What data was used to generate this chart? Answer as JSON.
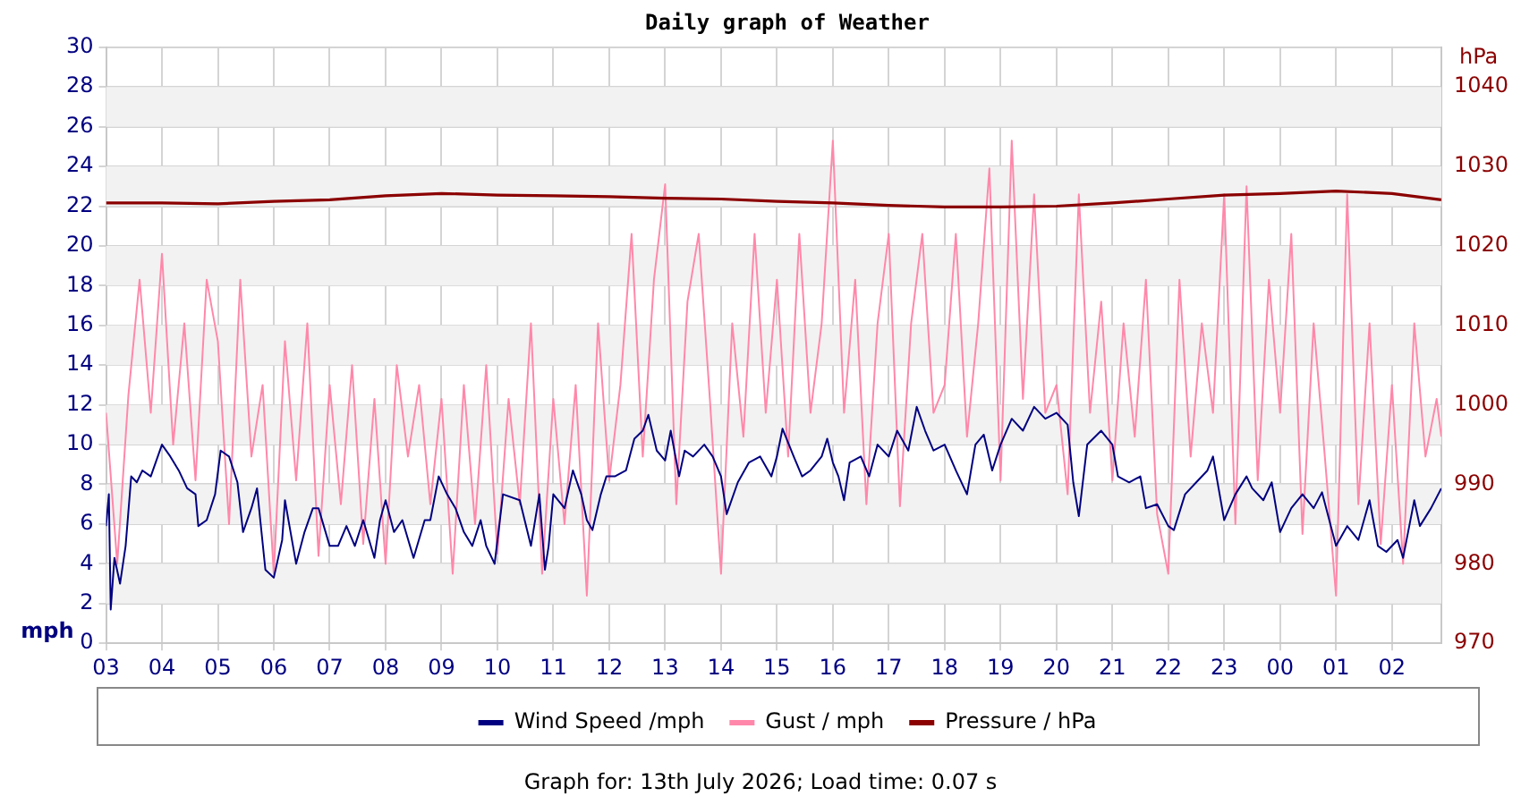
{
  "chart_data": {
    "type": "line",
    "title": "Daily graph of Weather",
    "ylabel": "mph",
    "y2label": "hPa",
    "annotations": [
      "Graph for: 13th July 2026; Load time: 0.07 s"
    ],
    "xlim": [
      "2026-07-12T03:00",
      "2026-07-13T02:53"
    ],
    "xticks": [
      {
        "value": "2026-07-12T03:00",
        "label": "03"
      },
      {
        "value": "2026-07-12T04:00",
        "label": "04"
      },
      {
        "value": "2026-07-12T05:00",
        "label": "05"
      },
      {
        "value": "2026-07-12T06:00",
        "label": "06"
      },
      {
        "value": "2026-07-12T07:00",
        "label": "07"
      },
      {
        "value": "2026-07-12T08:00",
        "label": "08"
      },
      {
        "value": "2026-07-12T09:00",
        "label": "09"
      },
      {
        "value": "2026-07-12T10:00",
        "label": "10"
      },
      {
        "value": "2026-07-12T11:00",
        "label": "11"
      },
      {
        "value": "2026-07-12T12:00",
        "label": "12"
      },
      {
        "value": "2026-07-12T13:00",
        "label": "13"
      },
      {
        "value": "2026-07-12T14:00",
        "label": "14"
      },
      {
        "value": "2026-07-12T15:00",
        "label": "15"
      },
      {
        "value": "2026-07-12T16:00",
        "label": "16"
      },
      {
        "value": "2026-07-12T17:00",
        "label": "17"
      },
      {
        "value": "2026-07-12T18:00",
        "label": "18"
      },
      {
        "value": "2026-07-12T19:00",
        "label": "19"
      },
      {
        "value": "2026-07-12T20:00",
        "label": "20"
      },
      {
        "value": "2026-07-12T21:00",
        "label": "21"
      },
      {
        "value": "2026-07-12T22:00",
        "label": "22"
      },
      {
        "value": "2026-07-12T23:00",
        "label": "23"
      },
      {
        "value": "2026-07-13T00:00",
        "label": "00"
      },
      {
        "value": "2026-07-13T01:00",
        "label": "01"
      },
      {
        "value": "2026-07-13T02:00",
        "label": "02"
      }
    ],
    "ylim": [
      0,
      30
    ],
    "yticks": [
      0,
      2,
      4,
      6,
      8,
      10,
      12,
      14,
      16,
      18,
      20,
      22,
      24,
      26,
      28,
      30
    ],
    "y2lim": [
      970,
      1045
    ],
    "y2ticks": [
      970,
      980,
      990,
      1000,
      1010,
      1020,
      1030,
      1040
    ],
    "grid": true,
    "legend": "bottom",
    "marker": "none",
    "line_style": "solid",
    "series": [
      {
        "name": "Wind Speed /mph",
        "color": "#000080",
        "x": [
          "2026-07-12T03:00",
          "2026-07-12T03:03",
          "2026-07-12T03:05",
          "2026-07-12T03:09",
          "2026-07-12T03:15",
          "2026-07-12T03:21",
          "2026-07-12T03:27",
          "2026-07-12T03:33",
          "2026-07-12T03:39",
          "2026-07-12T03:48",
          "2026-07-12T04:00",
          "2026-07-12T04:09",
          "2026-07-12T04:18",
          "2026-07-12T04:27",
          "2026-07-12T04:36",
          "2026-07-12T04:39",
          "2026-07-12T04:48",
          "2026-07-12T04:57",
          "2026-07-12T05:03",
          "2026-07-12T05:12",
          "2026-07-12T05:21",
          "2026-07-12T05:27",
          "2026-07-12T05:36",
          "2026-07-12T05:42",
          "2026-07-12T05:51",
          "2026-07-12T06:00",
          "2026-07-12T06:09",
          "2026-07-12T06:12",
          "2026-07-12T06:18",
          "2026-07-12T06:24",
          "2026-07-12T06:33",
          "2026-07-12T06:42",
          "2026-07-12T06:48",
          "2026-07-12T07:00",
          "2026-07-12T07:09",
          "2026-07-12T07:18",
          "2026-07-12T07:27",
          "2026-07-12T07:36",
          "2026-07-12T07:48",
          "2026-07-12T07:54",
          "2026-07-12T08:00",
          "2026-07-12T08:09",
          "2026-07-12T08:18",
          "2026-07-12T08:30",
          "2026-07-12T08:42",
          "2026-07-12T08:48",
          "2026-07-12T08:57",
          "2026-07-12T09:06",
          "2026-07-12T09:15",
          "2026-07-12T09:24",
          "2026-07-12T09:33",
          "2026-07-12T09:42",
          "2026-07-12T09:48",
          "2026-07-12T09:57",
          "2026-07-12T10:06",
          "2026-07-12T10:24",
          "2026-07-12T10:36",
          "2026-07-12T10:45",
          "2026-07-12T10:51",
          "2026-07-12T10:55",
          "2026-07-12T11:00",
          "2026-07-12T11:12",
          "2026-07-12T11:21",
          "2026-07-12T11:30",
          "2026-07-12T11:36",
          "2026-07-12T11:42",
          "2026-07-12T11:51",
          "2026-07-12T11:57",
          "2026-07-12T12:06",
          "2026-07-12T12:18",
          "2026-07-12T12:27",
          "2026-07-12T12:36",
          "2026-07-12T12:42",
          "2026-07-12T12:51",
          "2026-07-12T13:00",
          "2026-07-12T13:06",
          "2026-07-12T13:15",
          "2026-07-12T13:21",
          "2026-07-12T13:30",
          "2026-07-12T13:42",
          "2026-07-12T13:51",
          "2026-07-12T14:00",
          "2026-07-12T14:06",
          "2026-07-12T14:18",
          "2026-07-12T14:30",
          "2026-07-12T14:42",
          "2026-07-12T14:54",
          "2026-07-12T15:00",
          "2026-07-12T15:06",
          "2026-07-12T15:18",
          "2026-07-12T15:27",
          "2026-07-12T15:36",
          "2026-07-12T15:48",
          "2026-07-12T15:54",
          "2026-07-12T16:00",
          "2026-07-12T16:06",
          "2026-07-12T16:12",
          "2026-07-12T16:18",
          "2026-07-12T16:30",
          "2026-07-12T16:39",
          "2026-07-12T16:48",
          "2026-07-12T17:00",
          "2026-07-12T17:09",
          "2026-07-12T17:21",
          "2026-07-12T17:30",
          "2026-07-12T17:39",
          "2026-07-12T17:48",
          "2026-07-12T18:00",
          "2026-07-12T18:12",
          "2026-07-12T18:24",
          "2026-07-12T18:33",
          "2026-07-12T18:42",
          "2026-07-12T18:51",
          "2026-07-12T19:00",
          "2026-07-12T19:12",
          "2026-07-12T19:24",
          "2026-07-12T19:36",
          "2026-07-12T19:48",
          "2026-07-12T20:00",
          "2026-07-12T20:12",
          "2026-07-12T20:18",
          "2026-07-12T20:24",
          "2026-07-12T20:33",
          "2026-07-12T20:48",
          "2026-07-12T21:00",
          "2026-07-12T21:06",
          "2026-07-12T21:18",
          "2026-07-12T21:30",
          "2026-07-12T21:36",
          "2026-07-12T21:48",
          "2026-07-12T22:00",
          "2026-07-12T22:06",
          "2026-07-12T22:18",
          "2026-07-12T22:30",
          "2026-07-12T22:42",
          "2026-07-12T22:48",
          "2026-07-12T23:00",
          "2026-07-12T23:12",
          "2026-07-12T23:24",
          "2026-07-12T23:30",
          "2026-07-12T23:42",
          "2026-07-12T23:51",
          "2026-07-13T00:00",
          "2026-07-13T00:12",
          "2026-07-13T00:24",
          "2026-07-13T00:36",
          "2026-07-13T00:45",
          "2026-07-13T01:00",
          "2026-07-13T01:12",
          "2026-07-13T01:24",
          "2026-07-13T01:36",
          "2026-07-13T01:45",
          "2026-07-13T01:54",
          "2026-07-13T02:06",
          "2026-07-13T02:12",
          "2026-07-13T02:24",
          "2026-07-13T02:30",
          "2026-07-13T02:42",
          "2026-07-13T02:53"
        ],
        "values": [
          5.9,
          7.5,
          1.7,
          4.3,
          3.0,
          4.9,
          8.4,
          8.1,
          8.7,
          8.4,
          10.0,
          9.4,
          8.7,
          7.8,
          7.5,
          5.9,
          6.2,
          7.5,
          9.7,
          9.4,
          8.1,
          5.6,
          6.8,
          7.8,
          3.7,
          3.3,
          5.2,
          7.2,
          5.6,
          4.0,
          5.6,
          6.8,
          6.8,
          4.9,
          4.9,
          5.9,
          4.9,
          6.2,
          4.3,
          6.2,
          7.2,
          5.6,
          6.2,
          4.3,
          6.2,
          6.2,
          8.4,
          7.5,
          6.8,
          5.6,
          4.9,
          6.2,
          4.9,
          4.0,
          7.5,
          7.2,
          4.9,
          7.5,
          3.7,
          4.9,
          7.5,
          6.8,
          8.7,
          7.5,
          6.2,
          5.7,
          7.5,
          8.4,
          8.4,
          8.7,
          10.3,
          10.7,
          11.5,
          9.7,
          9.2,
          10.7,
          8.4,
          9.7,
          9.4,
          10.0,
          9.4,
          8.4,
          6.5,
          8.1,
          9.1,
          9.4,
          8.4,
          9.4,
          10.8,
          9.4,
          8.4,
          8.7,
          9.4,
          10.3,
          9.1,
          8.4,
          7.2,
          9.1,
          9.4,
          8.4,
          10.0,
          9.4,
          10.7,
          9.7,
          11.9,
          10.7,
          9.7,
          10.0,
          8.7,
          7.5,
          10.0,
          10.5,
          8.7,
          10.0,
          11.3,
          10.7,
          11.9,
          11.3,
          11.6,
          11.0,
          8.1,
          6.4,
          10.0,
          10.7,
          10.0,
          8.4,
          8.1,
          8.4,
          6.8,
          7.0,
          5.9,
          5.7,
          7.5,
          8.1,
          8.7,
          9.4,
          6.2,
          7.5,
          8.4,
          7.8,
          7.2,
          8.1,
          5.6,
          6.8,
          7.5,
          6.8,
          7.6,
          4.9,
          5.9,
          5.2,
          7.2,
          4.9,
          4.6,
          5.2,
          4.3,
          7.2,
          5.9,
          6.8,
          7.8
        ]
      },
      {
        "name": "Gust / mph",
        "color": "#ff88aa",
        "x": [
          "2026-07-12T03:00",
          "2026-07-12T03:12",
          "2026-07-12T03:24",
          "2026-07-12T03:36",
          "2026-07-12T03:48",
          "2026-07-12T04:00",
          "2026-07-12T04:12",
          "2026-07-12T04:24",
          "2026-07-12T04:36",
          "2026-07-12T04:48",
          "2026-07-12T05:00",
          "2026-07-12T05:12",
          "2026-07-12T05:24",
          "2026-07-12T05:36",
          "2026-07-12T05:48",
          "2026-07-12T06:00",
          "2026-07-12T06:12",
          "2026-07-12T06:24",
          "2026-07-12T06:36",
          "2026-07-12T06:48",
          "2026-07-12T07:00",
          "2026-07-12T07:12",
          "2026-07-12T07:24",
          "2026-07-12T07:36",
          "2026-07-12T07:48",
          "2026-07-12T08:00",
          "2026-07-12T08:12",
          "2026-07-12T08:24",
          "2026-07-12T08:36",
          "2026-07-12T08:48",
          "2026-07-12T09:00",
          "2026-07-12T09:12",
          "2026-07-12T09:24",
          "2026-07-12T09:36",
          "2026-07-12T09:48",
          "2026-07-12T10:00",
          "2026-07-12T10:12",
          "2026-07-12T10:24",
          "2026-07-12T10:36",
          "2026-07-12T10:48",
          "2026-07-12T11:00",
          "2026-07-12T11:12",
          "2026-07-12T11:24",
          "2026-07-12T11:36",
          "2026-07-12T11:48",
          "2026-07-12T12:00",
          "2026-07-12T12:12",
          "2026-07-12T12:24",
          "2026-07-12T12:36",
          "2026-07-12T12:48",
          "2026-07-12T13:00",
          "2026-07-12T13:12",
          "2026-07-12T13:24",
          "2026-07-12T13:36",
          "2026-07-12T13:48",
          "2026-07-12T14:00",
          "2026-07-12T14:12",
          "2026-07-12T14:24",
          "2026-07-12T14:36",
          "2026-07-12T14:48",
          "2026-07-12T15:00",
          "2026-07-12T15:12",
          "2026-07-12T15:24",
          "2026-07-12T15:36",
          "2026-07-12T15:48",
          "2026-07-12T16:00",
          "2026-07-12T16:12",
          "2026-07-12T16:24",
          "2026-07-12T16:36",
          "2026-07-12T16:48",
          "2026-07-12T17:00",
          "2026-07-12T17:12",
          "2026-07-12T17:24",
          "2026-07-12T17:36",
          "2026-07-12T17:48",
          "2026-07-12T18:00",
          "2026-07-12T18:12",
          "2026-07-12T18:24",
          "2026-07-12T18:36",
          "2026-07-12T18:48",
          "2026-07-12T19:00",
          "2026-07-12T19:12",
          "2026-07-12T19:24",
          "2026-07-12T19:36",
          "2026-07-12T19:48",
          "2026-07-12T20:00",
          "2026-07-12T20:12",
          "2026-07-12T20:24",
          "2026-07-12T20:36",
          "2026-07-12T20:48",
          "2026-07-12T21:00",
          "2026-07-12T21:12",
          "2026-07-12T21:24",
          "2026-07-12T21:36",
          "2026-07-12T21:48",
          "2026-07-12T22:00",
          "2026-07-12T22:12",
          "2026-07-12T22:24",
          "2026-07-12T22:36",
          "2026-07-12T22:48",
          "2026-07-12T23:00",
          "2026-07-12T23:12",
          "2026-07-12T23:24",
          "2026-07-12T23:36",
          "2026-07-12T23:48",
          "2026-07-13T00:00",
          "2026-07-13T00:12",
          "2026-07-13T00:24",
          "2026-07-13T00:36",
          "2026-07-13T00:48",
          "2026-07-13T01:00",
          "2026-07-13T01:12",
          "2026-07-13T01:24",
          "2026-07-13T01:36",
          "2026-07-13T01:48",
          "2026-07-13T02:00",
          "2026-07-13T02:12",
          "2026-07-13T02:24",
          "2026-07-13T02:36",
          "2026-07-13T02:48",
          "2026-07-13T02:53"
        ],
        "values": [
          11.6,
          4.0,
          12.5,
          18.3,
          11.6,
          19.6,
          10.0,
          16.1,
          8.2,
          18.3,
          15.2,
          6.0,
          18.3,
          9.4,
          13.0,
          3.5,
          15.2,
          8.2,
          16.1,
          4.4,
          13.0,
          7.0,
          14.0,
          5.0,
          12.3,
          4.0,
          14.0,
          9.4,
          13.0,
          7.0,
          12.3,
          3.5,
          13.0,
          6.0,
          14.0,
          4.5,
          12.3,
          7.0,
          16.1,
          3.5,
          12.3,
          6.0,
          13.0,
          2.4,
          16.1,
          8.2,
          13.0,
          20.6,
          9.4,
          18.3,
          23.1,
          7.0,
          17.2,
          20.6,
          12.3,
          3.5,
          16.1,
          10.4,
          20.6,
          11.6,
          18.3,
          9.4,
          20.6,
          11.6,
          16.1,
          25.3,
          11.6,
          18.3,
          7.0,
          16.1,
          20.6,
          6.9,
          16.1,
          20.6,
          11.6,
          13.0,
          20.6,
          10.4,
          16.1,
          23.9,
          8.2,
          25.3,
          12.3,
          22.6,
          11.6,
          13.0,
          7.5,
          22.6,
          11.6,
          17.2,
          8.2,
          16.1,
          10.4,
          18.3,
          6.5,
          3.5,
          18.3,
          9.4,
          16.1,
          11.6,
          22.6,
          6.0,
          23.0,
          8.2,
          18.3,
          11.6,
          20.6,
          5.5,
          16.1,
          9.4,
          2.4,
          22.6,
          7.0,
          16.1,
          5.0,
          13.0,
          4.0,
          16.1,
          9.4,
          12.3,
          10.4
        ]
      },
      {
        "name": "Pressure / hPa",
        "color": "#8b0000",
        "axis": "y2",
        "x": [
          "2026-07-12T03:00",
          "2026-07-12T04:00",
          "2026-07-12T05:00",
          "2026-07-12T06:00",
          "2026-07-12T07:00",
          "2026-07-12T08:00",
          "2026-07-12T09:00",
          "2026-07-12T10:00",
          "2026-07-12T11:00",
          "2026-07-12T12:00",
          "2026-07-12T13:00",
          "2026-07-12T14:00",
          "2026-07-12T15:00",
          "2026-07-12T16:00",
          "2026-07-12T17:00",
          "2026-07-12T18:00",
          "2026-07-12T19:00",
          "2026-07-12T20:00",
          "2026-07-12T21:00",
          "2026-07-12T22:00",
          "2026-07-12T23:00",
          "2026-07-13T00:00",
          "2026-07-13T01:00",
          "2026-07-13T02:00",
          "2026-07-13T02:53"
        ],
        "values": [
          1025.4,
          1025.4,
          1025.3,
          1025.6,
          1025.8,
          1026.3,
          1026.6,
          1026.4,
          1026.3,
          1026.2,
          1026.0,
          1025.9,
          1025.6,
          1025.4,
          1025.1,
          1024.9,
          1024.9,
          1025.0,
          1025.4,
          1025.9,
          1026.4,
          1026.6,
          1026.9,
          1026.6,
          1025.8
        ]
      }
    ]
  }
}
